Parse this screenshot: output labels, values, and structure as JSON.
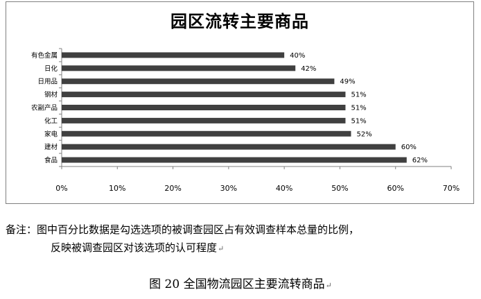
{
  "chart_data": {
    "type": "bar",
    "orientation": "horizontal",
    "title": "园区流转主要商品",
    "categories": [
      "有色金属",
      "日化",
      "日用品",
      "钢材",
      "农副产品",
      "化工",
      "家电",
      "建材",
      "食品"
    ],
    "values": [
      40,
      42,
      49,
      51,
      51,
      51,
      52,
      60,
      62
    ],
    "data_labels": [
      "40%",
      "42%",
      "49%",
      "51%",
      "51%",
      "51%",
      "52%",
      "60%",
      "62%"
    ],
    "xlim": [
      0,
      70
    ],
    "x_ticks": [
      "0%",
      "10%",
      "20%",
      "30%",
      "40%",
      "50%",
      "60%",
      "70%"
    ],
    "xlabel": "",
    "ylabel": "",
    "bar_color": "#404040",
    "grid": false,
    "legend": "none"
  },
  "note": {
    "line1": "备注：图中百分比数据是勾选选项的被调查园区占有效调查样本总量的比例，",
    "line2": "反映被调查园区对该选项的认可程度",
    "mark": "↵"
  },
  "caption": {
    "text": "图 20  全国物流园区主要流转商品",
    "mark": "↵"
  }
}
